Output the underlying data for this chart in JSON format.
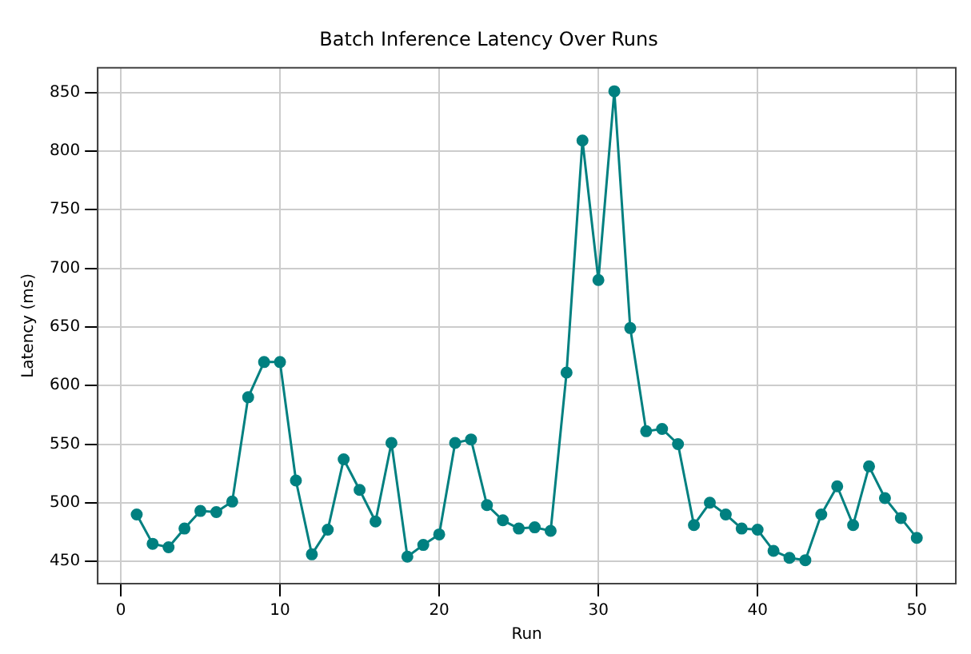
{
  "chart_data": {
    "type": "line",
    "title": "Batch Inference Latency Over Runs",
    "xlabel": "Run",
    "ylabel": "Latency (ms)",
    "x": [
      1,
      2,
      3,
      4,
      5,
      6,
      7,
      8,
      9,
      10,
      11,
      12,
      13,
      14,
      15,
      16,
      17,
      18,
      19,
      20,
      21,
      22,
      23,
      24,
      25,
      26,
      27,
      28,
      29,
      30,
      31,
      32,
      33,
      34,
      35,
      36,
      37,
      38,
      39,
      40,
      41,
      42,
      43,
      44,
      45,
      46,
      47,
      48,
      49,
      50
    ],
    "series": [
      {
        "color": "#008080",
        "values": [
          490,
          465,
          462,
          478,
          493,
          492,
          501,
          590,
          620,
          620,
          519,
          456,
          477,
          537,
          511,
          484,
          551,
          454,
          464,
          473,
          551,
          554,
          498,
          485,
          478,
          479,
          476,
          611,
          809,
          690,
          851,
          649,
          561,
          563,
          550,
          481,
          500,
          490,
          478,
          477,
          459,
          453,
          451,
          490,
          514,
          481,
          531,
          504,
          487,
          470
        ]
      }
    ],
    "xlim": [
      -1.45,
      52.45
    ],
    "xticks": [
      0,
      10,
      20,
      30,
      40,
      50
    ],
    "ylim": [
      431,
      871
    ],
    "yticks": [
      450,
      500,
      550,
      600,
      650,
      700,
      750,
      800,
      850
    ],
    "grid": true,
    "legend": false,
    "marker": "circle",
    "line_style": "solid"
  }
}
